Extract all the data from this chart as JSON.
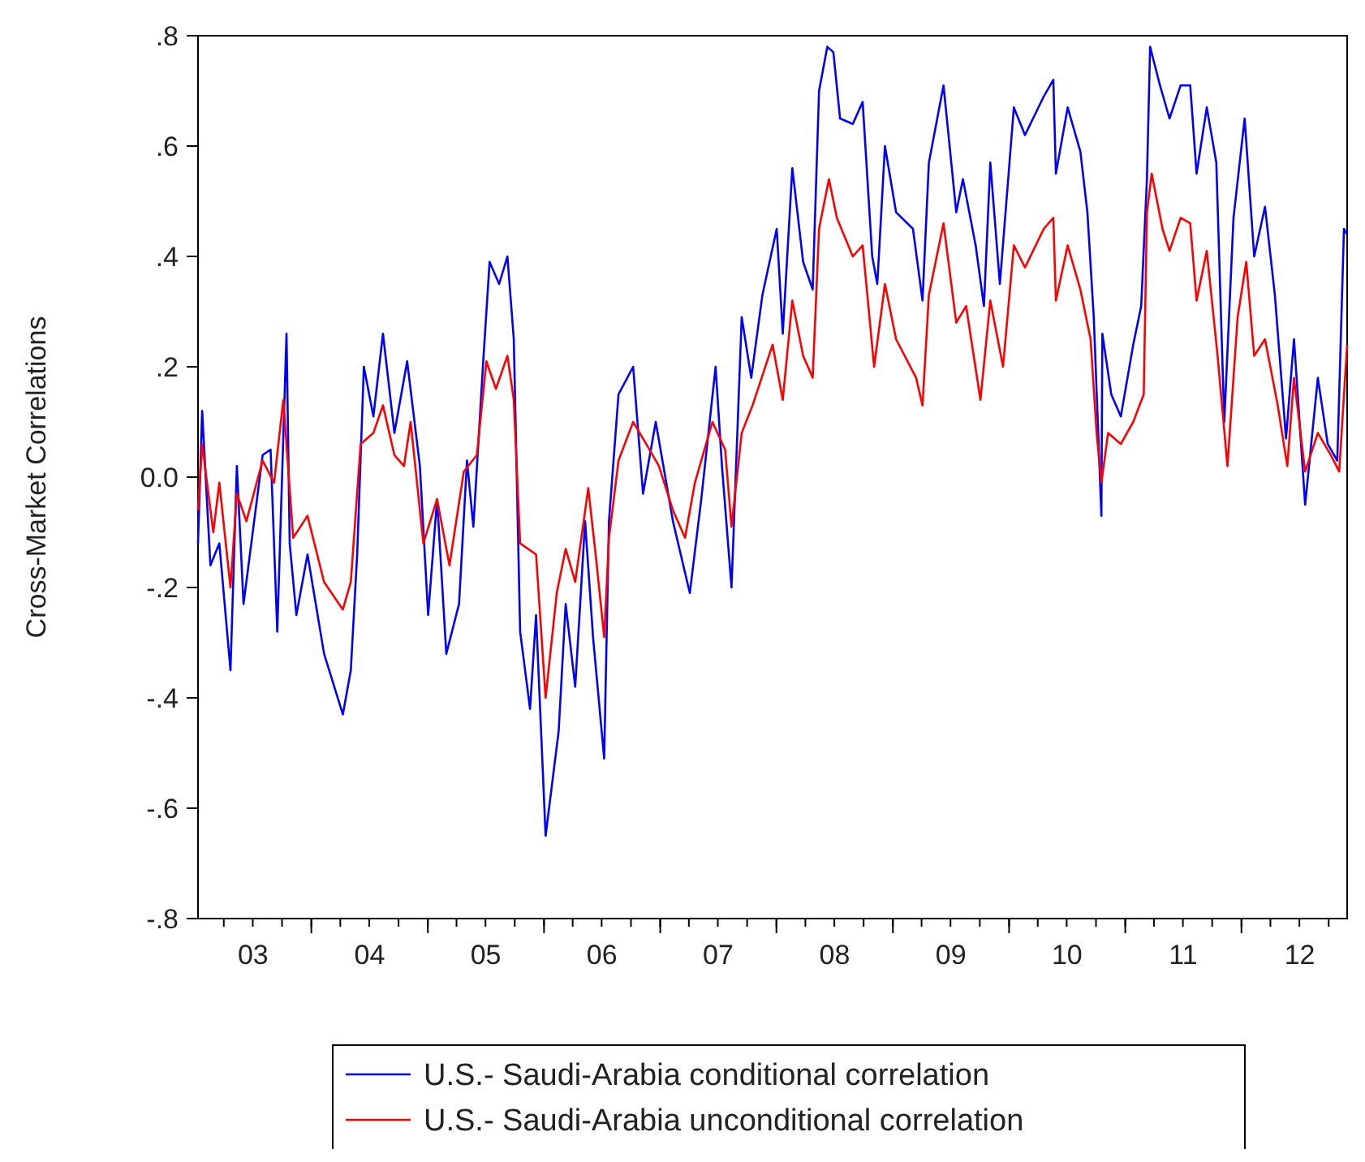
{
  "chart_data": {
    "type": "line",
    "ylabel": "Cross-Market Correlations",
    "xlim": [
      "2003-01-10",
      "2012-11-28"
    ],
    "xticks": [
      {
        "value": "2003-07-02",
        "label": "03"
      },
      {
        "value": "2004-07-02",
        "label": "04"
      },
      {
        "value": "2005-07-02",
        "label": "05"
      },
      {
        "value": "2006-07-02",
        "label": "06"
      },
      {
        "value": "2007-07-02",
        "label": "07"
      },
      {
        "value": "2008-07-02",
        "label": "08"
      },
      {
        "value": "2009-07-02",
        "label": "09"
      },
      {
        "value": "2010-07-02",
        "label": "10"
      },
      {
        "value": "2011-07-02",
        "label": "11"
      },
      {
        "value": "2012-07-02",
        "label": "12"
      }
    ],
    "ylim": [
      -0.8,
      0.8
    ],
    "yticks": [
      {
        "value": -0.8,
        "label": "-.8"
      },
      {
        "value": -0.6,
        "label": "-.6"
      },
      {
        "value": -0.4,
        "label": "-.4"
      },
      {
        "value": -0.2,
        "label": "-.2"
      },
      {
        "value": 0,
        "label": "0.0"
      },
      {
        "value": 0.2,
        "label": ".2"
      },
      {
        "value": 0.4,
        "label": ".4"
      },
      {
        "value": 0.6,
        "label": ".6"
      },
      {
        "value": 0.8,
        "label": ".8"
      }
    ],
    "grid": false,
    "legend": "bottom",
    "line_style": "solid",
    "marker": "none",
    "series": [
      {
        "name": "U.S.- Saudi-Arabia conditional correlation",
        "color": "#0000ff",
        "x": [
          "2003-01-10",
          "2003-01-23",
          "2003-02-18",
          "2003-03-18",
          "2003-04-22",
          "2003-05-12",
          "2003-06-02",
          "2003-08-01",
          "2003-08-26",
          "2003-09-16",
          "2003-10-15",
          "2003-10-25",
          "2003-11-15",
          "2003-12-20",
          "2004-02-10",
          "2004-04-09",
          "2004-05-04",
          "2004-05-24",
          "2004-06-14",
          "2004-07-14",
          "2004-08-13",
          "2004-09-18",
          "2004-10-28",
          "2004-12-07",
          "2005-01-02",
          "2005-01-30",
          "2005-02-28",
          "2005-04-09",
          "2005-05-04",
          "2005-05-24",
          "2005-06-24",
          "2005-07-14",
          "2005-08-13",
          "2005-09-08",
          "2005-09-28",
          "2005-10-18",
          "2005-11-18",
          "2005-12-07",
          "2006-01-06",
          "2006-02-16",
          "2006-03-10",
          "2006-04-09",
          "2006-05-10",
          "2006-06-04",
          "2006-07-09",
          "2006-07-24",
          "2006-08-23",
          "2006-10-08",
          "2006-11-08",
          "2006-12-18",
          "2007-02-10",
          "2007-04-04",
          "2007-05-10",
          "2007-06-24",
          "2007-07-14",
          "2007-08-13",
          "2007-09-14",
          "2007-10-14",
          "2007-11-18",
          "2008-01-02",
          "2008-01-21",
          "2008-02-20",
          "2008-03-25",
          "2008-04-24",
          "2008-05-14",
          "2008-06-09",
          "2008-06-28",
          "2008-07-19",
          "2008-08-28",
          "2008-09-28",
          "2008-10-28",
          "2008-11-13",
          "2008-12-07",
          "2009-01-11",
          "2009-03-05",
          "2009-04-04",
          "2009-04-24",
          "2009-06-09",
          "2009-07-19",
          "2009-08-09",
          "2009-09-18",
          "2009-10-14",
          "2009-11-03",
          "2009-12-03",
          "2010-01-16",
          "2010-02-20",
          "2010-04-20",
          "2010-05-20",
          "2010-05-28",
          "2010-07-04",
          "2010-08-13",
          "2010-09-04",
          "2010-09-24",
          "2010-10-18",
          "2010-10-21",
          "2010-11-18",
          "2010-12-18",
          "2011-01-26",
          "2011-02-20",
          "2011-03-10",
          "2011-03-20",
          "2011-04-20",
          "2011-05-20",
          "2011-06-24",
          "2011-07-24",
          "2011-08-13",
          "2011-09-14",
          "2011-10-14",
          "2011-11-08",
          "2011-12-07",
          "2012-01-11",
          "2012-02-10",
          "2012-03-15",
          "2012-04-15",
          "2012-05-20",
          "2012-06-14",
          "2012-07-19",
          "2012-08-28",
          "2012-09-28",
          "2012-10-28",
          "2012-11-18",
          "2012-11-28"
        ],
        "values": [
          -0.12,
          0.12,
          -0.16,
          -0.12,
          -0.35,
          0.02,
          -0.23,
          0.04,
          0.05,
          -0.28,
          0.26,
          -0.12,
          -0.25,
          -0.14,
          -0.32,
          -0.43,
          -0.35,
          -0.14,
          0.2,
          0.11,
          0.26,
          0.08,
          0.21,
          0.02,
          -0.25,
          -0.04,
          -0.32,
          -0.23,
          0.03,
          -0.09,
          0.21,
          0.39,
          0.35,
          0.4,
          0.25,
          -0.28,
          -0.42,
          -0.25,
          -0.65,
          -0.46,
          -0.23,
          -0.38,
          -0.08,
          -0.29,
          -0.51,
          -0.08,
          0.15,
          0.2,
          -0.03,
          0.1,
          -0.08,
          -0.21,
          -0.04,
          0.2,
          0.02,
          -0.2,
          0.29,
          0.18,
          0.33,
          0.45,
          0.26,
          0.56,
          0.39,
          0.34,
          0.7,
          0.78,
          0.77,
          0.65,
          0.64,
          0.68,
          0.4,
          0.35,
          0.6,
          0.48,
          0.45,
          0.32,
          0.57,
          0.71,
          0.48,
          0.54,
          0.42,
          0.31,
          0.57,
          0.35,
          0.67,
          0.62,
          0.69,
          0.72,
          0.55,
          0.67,
          0.59,
          0.48,
          0.29,
          -0.07,
          0.26,
          0.15,
          0.11,
          0.24,
          0.31,
          0.54,
          0.78,
          0.71,
          0.65,
          0.71,
          0.71,
          0.55,
          0.67,
          0.57,
          0.1,
          0.47,
          0.65,
          0.4,
          0.49,
          0.33,
          0.07,
          0.25,
          -0.05,
          0.18,
          0.06,
          0.03,
          0.45,
          0.44
        ]
      },
      {
        "name": "U.S.- Saudi-Arabia unconditional correlation",
        "color": "#ff0000",
        "x": [
          "2003-01-10",
          "2003-01-23",
          "2003-02-27",
          "2003-03-18",
          "2003-04-22",
          "2003-05-12",
          "2003-06-11",
          "2003-08-01",
          "2003-09-06",
          "2003-10-05",
          "2003-11-05",
          "2003-12-20",
          "2004-02-10",
          "2004-04-09",
          "2004-05-04",
          "2004-06-04",
          "2004-07-14",
          "2004-08-13",
          "2004-09-18",
          "2004-10-18",
          "2004-11-08",
          "2004-12-18",
          "2005-01-30",
          "2005-03-10",
          "2005-04-24",
          "2005-06-04",
          "2005-07-04",
          "2005-08-03",
          "2005-09-08",
          "2005-09-28",
          "2005-10-18",
          "2005-12-07",
          "2006-01-06",
          "2006-02-10",
          "2006-03-10",
          "2006-04-09",
          "2006-05-20",
          "2006-06-14",
          "2006-07-09",
          "2006-07-24",
          "2006-08-23",
          "2006-10-08",
          "2006-11-18",
          "2006-12-28",
          "2007-02-10",
          "2007-03-20",
          "2007-04-20",
          "2007-06-14",
          "2007-07-24",
          "2007-08-13",
          "2007-09-14",
          "2007-10-18",
          "2007-12-20",
          "2008-01-21",
          "2008-02-20",
          "2008-03-25",
          "2008-04-24",
          "2008-05-14",
          "2008-06-14",
          "2008-07-09",
          "2008-08-28",
          "2008-09-28",
          "2008-11-03",
          "2008-12-07",
          "2009-01-11",
          "2009-03-15",
          "2009-04-04",
          "2009-04-24",
          "2009-06-09",
          "2009-07-19",
          "2009-08-19",
          "2009-10-03",
          "2009-11-03",
          "2009-12-13",
          "2010-01-16",
          "2010-02-20",
          "2010-04-20",
          "2010-05-20",
          "2010-05-28",
          "2010-07-04",
          "2010-08-13",
          "2010-09-14",
          "2010-10-03",
          "2010-10-18",
          "2010-11-08",
          "2010-12-18",
          "2011-01-26",
          "2011-02-28",
          "2011-03-10",
          "2011-03-25",
          "2011-04-28",
          "2011-05-20",
          "2011-06-24",
          "2011-07-24",
          "2011-08-13",
          "2011-09-14",
          "2011-10-18",
          "2011-11-18",
          "2011-12-20",
          "2012-01-16",
          "2012-02-10",
          "2012-03-15",
          "2012-04-24",
          "2012-05-24",
          "2012-06-14",
          "2012-07-19",
          "2012-08-28",
          "2012-10-08",
          "2012-11-03",
          "2012-11-28"
        ],
        "values": [
          -0.06,
          0.06,
          -0.1,
          -0.01,
          -0.2,
          -0.03,
          -0.08,
          0.03,
          -0.01,
          0.14,
          -0.11,
          -0.07,
          -0.19,
          -0.24,
          -0.19,
          0.06,
          0.08,
          0.13,
          0.04,
          0.02,
          0.1,
          -0.12,
          -0.04,
          -0.16,
          0.01,
          0.04,
          0.21,
          0.16,
          0.22,
          0.14,
          -0.12,
          -0.14,
          -0.4,
          -0.21,
          -0.13,
          -0.19,
          -0.02,
          -0.15,
          -0.29,
          -0.11,
          0.03,
          0.1,
          0.06,
          0.02,
          -0.06,
          -0.11,
          -0.01,
          0.1,
          0.05,
          -0.09,
          0.08,
          0.13,
          0.24,
          0.14,
          0.32,
          0.22,
          0.18,
          0.45,
          0.54,
          0.47,
          0.4,
          0.42,
          0.2,
          0.35,
          0.25,
          0.18,
          0.13,
          0.33,
          0.46,
          0.28,
          0.31,
          0.14,
          0.32,
          0.2,
          0.42,
          0.38,
          0.45,
          0.47,
          0.32,
          0.42,
          0.34,
          0.25,
          0.08,
          -0.01,
          0.08,
          0.06,
          0.1,
          0.15,
          0.48,
          0.55,
          0.45,
          0.41,
          0.47,
          0.46,
          0.32,
          0.41,
          0.22,
          0.02,
          0.29,
          0.39,
          0.22,
          0.25,
          0.13,
          0.02,
          0.18,
          0.01,
          0.08,
          0.04,
          0.01,
          0.24
        ]
      }
    ]
  }
}
